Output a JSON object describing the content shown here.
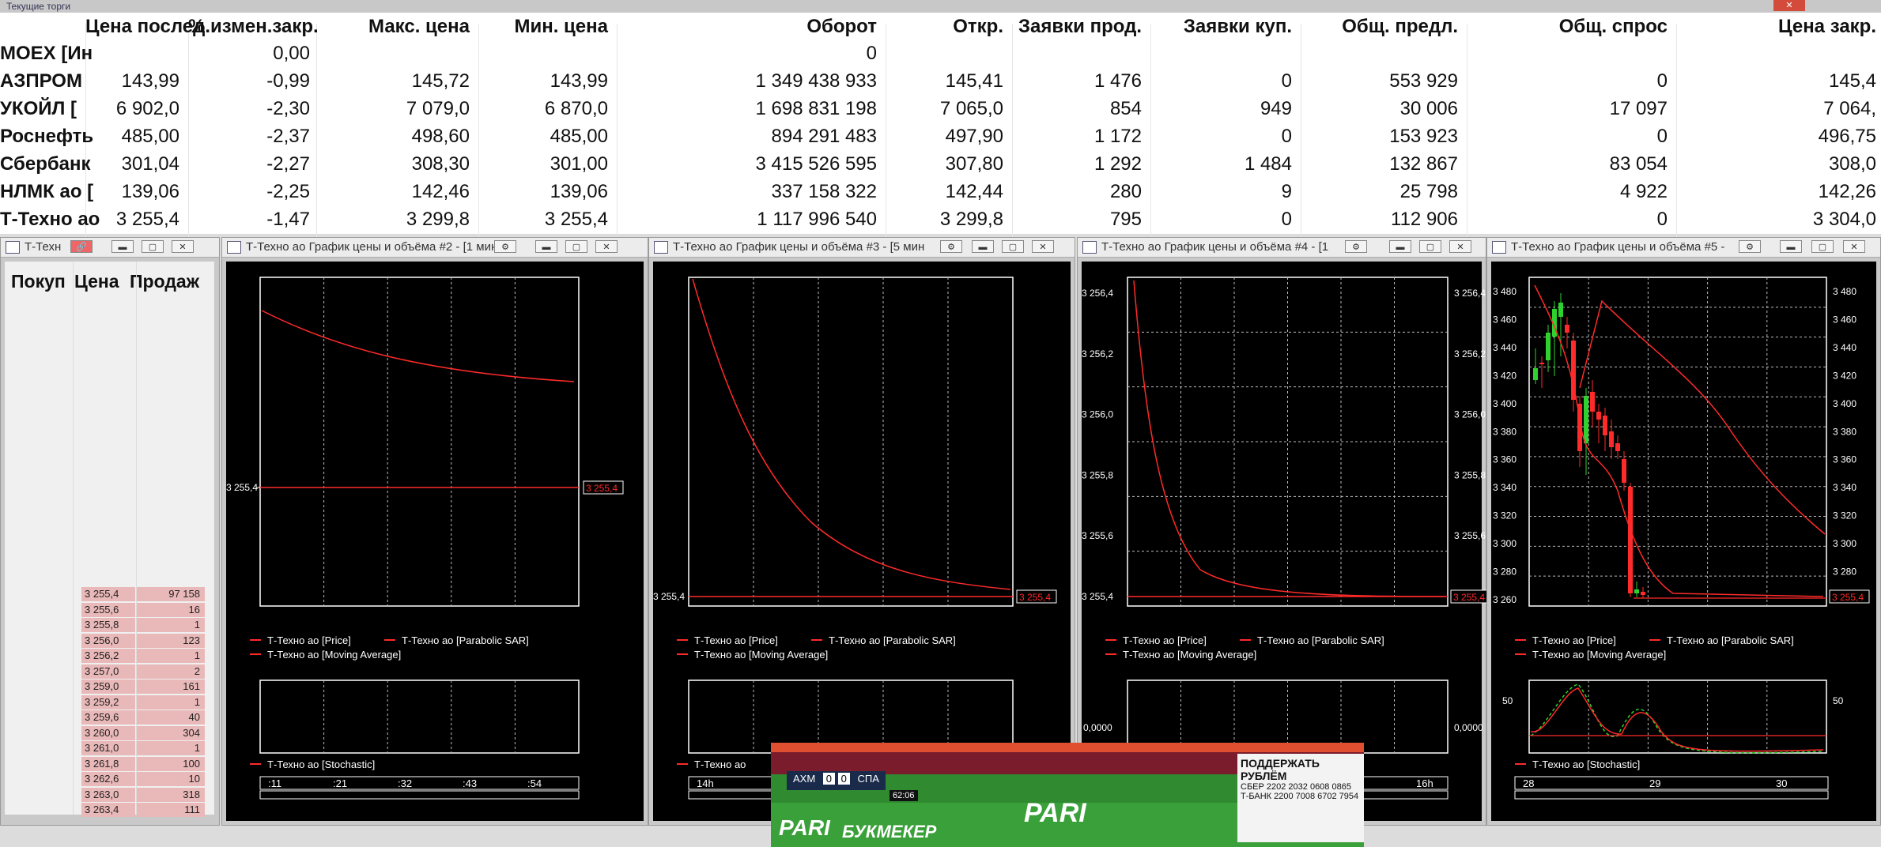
{
  "window_title": "Текущие торги",
  "quotes": {
    "headers": [
      "Цена послед.",
      "% измен.закр.",
      "Макс. цена",
      "Мин. цена",
      "Оборот",
      "Откр.",
      "Заявки прод.",
      "Заявки куп.",
      "Общ. предл.",
      "Общ. спрос",
      "Цена закр."
    ],
    "rows": [
      {
        "name": "МОЕХ [Ин",
        "cells": [
          "",
          "0,00",
          "",
          "",
          "0",
          "",
          "",
          "",
          "",
          "",
          ""
        ]
      },
      {
        "name": "АЗПРОМ",
        "cells": [
          "143,99",
          "-0,99",
          "145,72",
          "143,99",
          "1 349 438 933",
          "145,41",
          "1 476",
          "0",
          "553 929",
          "0",
          "145,4"
        ]
      },
      {
        "name": "УКОЙЛ [",
        "cells": [
          "6 902,0",
          "-2,30",
          "7 079,0",
          "6 870,0",
          "1 698 831 198",
          "7 065,0",
          "854",
          "949",
          "30 006",
          "17 097",
          "7 064,"
        ]
      },
      {
        "name": "Роснефть",
        "cells": [
          "485,00",
          "-2,37",
          "498,60",
          "485,00",
          "894 291 483",
          "497,90",
          "1 172",
          "0",
          "153 923",
          "0",
          "496,75"
        ]
      },
      {
        "name": "Сбербанк",
        "cells": [
          "301,04",
          "-2,27",
          "308,30",
          "301,00",
          "3 415 526 595",
          "307,80",
          "1 292",
          "1 484",
          "132 867",
          "83 054",
          "308,0"
        ]
      },
      {
        "name": "НЛМК ао [",
        "cells": [
          "139,06",
          "-2,25",
          "142,46",
          "139,06",
          "337 158 322",
          "142,44",
          "280",
          "9",
          "25 798",
          "4 922",
          "142,26"
        ]
      },
      {
        "name": "Т-Техно ао",
        "cells": [
          "3 255,4",
          "-1,47",
          "3 299,8",
          "3 255,4",
          "1 117 996 540",
          "3 299,8",
          "795",
          "0",
          "112 906",
          "0",
          "3 304,0"
        ]
      }
    ]
  },
  "glass": {
    "title": "Т-Техн",
    "headers": [
      "Покуп",
      "Цена",
      "Продаж"
    ],
    "rows": [
      {
        "price": "3 255,4",
        "vol": "97 158"
      },
      {
        "price": "3 255,6",
        "vol": "16"
      },
      {
        "price": "3 255,8",
        "vol": "1"
      },
      {
        "price": "3 256,0",
        "vol": "123"
      },
      {
        "price": "3 256,2",
        "vol": "1"
      },
      {
        "price": "3 257,0",
        "vol": "2"
      },
      {
        "price": "3 259,0",
        "vol": "161"
      },
      {
        "price": "3 259,2",
        "vol": "1"
      },
      {
        "price": "3 259,6",
        "vol": "40"
      },
      {
        "price": "3 260,0",
        "vol": "304"
      },
      {
        "price": "3 261,0",
        "vol": "1"
      },
      {
        "price": "3 261,8",
        "vol": "100"
      },
      {
        "price": "3 262,6",
        "vol": "10"
      },
      {
        "price": "3 263,0",
        "vol": "318"
      },
      {
        "price": "3 263,4",
        "vol": "111"
      }
    ]
  },
  "charts": {
    "c2": {
      "title": "Т-Техно ао График цены и объёма #2 - [1 мин",
      "price_label": "3 255,4",
      "last": "3 255,4",
      "legend": [
        "Т-Техно ао [Price]",
        "Т-Техно ао [Parabolic SAR]",
        "Т-Техно ао [Moving Average]"
      ],
      "stoch_legend": "Т-Техно ао [Stochastic]",
      "time_ticks": [
        ":11",
        ":21",
        ":32",
        ":43",
        ":54"
      ]
    },
    "c3": {
      "title": "Т-Техно ао График цены и объёма #3 - [5 мин",
      "last": "3 255,4",
      "price_label": "3 255,4",
      "legend": [
        "Т-Техно ао [Price]",
        "Т-Техно ао [Parabolic SAR]",
        "Т-Техно ао [Moving Average]"
      ],
      "stoch_legend": "Т-Техно ао",
      "time_ticks": [
        "14h"
      ]
    },
    "c4": {
      "title": "Т-Техно ао График цены и объёма #4 - [1",
      "last": "3 255,4",
      "y_ticks": [
        "3 256,4",
        "3 256,2",
        "3 256,0",
        "3 255,8",
        "3 255,6",
        "3 255,4"
      ],
      "legend": [
        "Т-Техно ао [Price]",
        "Т-Техно ао [Parabolic SAR]",
        "Т-Техно ао [Moving Average]"
      ],
      "stoch_tick": "0,0000",
      "time_ticks": [
        "16h"
      ]
    },
    "c5": {
      "title": "Т-Техно ао График цены и объёма #5 -",
      "last": "3 255,4",
      "y_ticks": [
        "3 480",
        "3 460",
        "3 440",
        "3 420",
        "3 400",
        "3 380",
        "3 360",
        "3 340",
        "3 320",
        "3 300",
        "3 280",
        "3 260"
      ],
      "legend": [
        "Т-Техно ао [Price]",
        "Т-Техно ао [Parabolic SAR]",
        "Т-Техно ао [Moving Average]"
      ],
      "stoch_legend": "Т-Техно ао [Stochastic]",
      "stoch_tick": "50",
      "time_ticks": [
        "28",
        "29",
        "30"
      ]
    }
  },
  "video": {
    "support_title": "ПОДДЕРЖАТЬ РУБЛЁМ",
    "sber": "СБЕР 2202 2032 0608 0865",
    "tbank": "Т-БАНК 2200 7008 6702 7954",
    "brand": "PARI",
    "brand2": "БУКМЕКЕР",
    "team1": "АХМ",
    "score1": "0",
    "score2": "0",
    "team2": "СПА",
    "time": "62:06"
  },
  "colors": {
    "line": "#ff2a2a",
    "candle_up": "#2fd12f",
    "candle_down": "#ff2a2a",
    "bg": "#000000"
  }
}
